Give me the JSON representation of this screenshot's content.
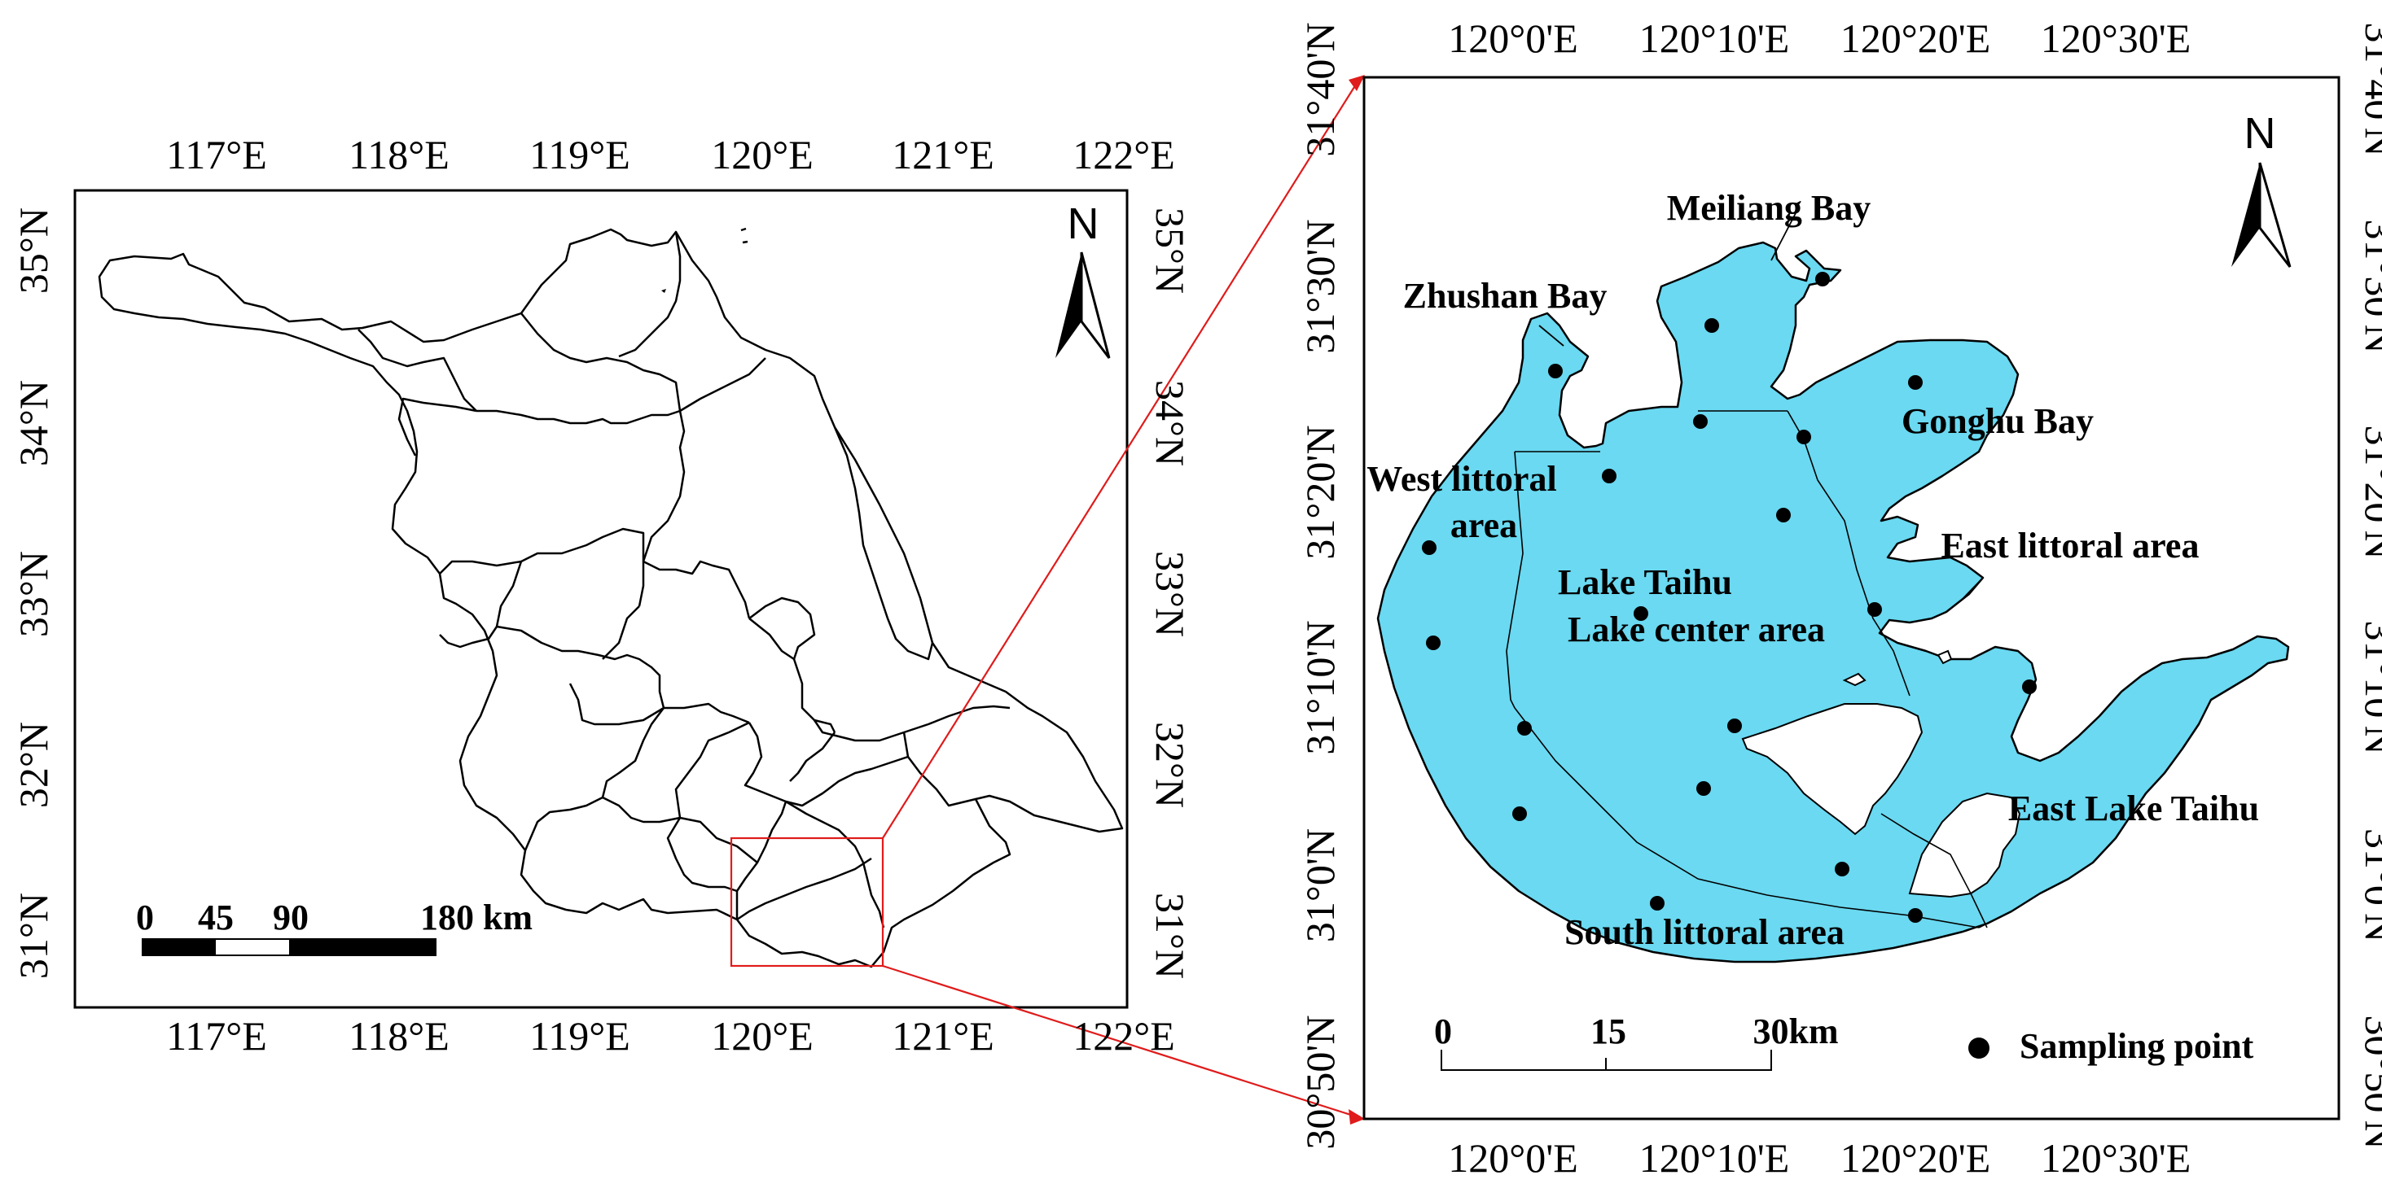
{
  "left_map": {
    "lon_labels": [
      "117°E",
      "118°E",
      "119°E",
      "120°E",
      "121°E",
      "122°E"
    ],
    "lat_labels": [
      "35°N",
      "34°N",
      "33°N",
      "32°N",
      "31°N"
    ],
    "north_label": "N",
    "scale_bar": {
      "labels": [
        "0",
        "45",
        "90",
        "180 km"
      ]
    }
  },
  "right_map": {
    "lon_labels": [
      "120°0'E",
      "120°10'E",
      "120°20'E",
      "120°30'E"
    ],
    "lat_labels": [
      "31°40'N",
      "31°30'N",
      "31°20'N",
      "31°10'N",
      "31°0'N",
      "30°50'N"
    ],
    "north_label": "N",
    "area_labels": {
      "meiliang": "Meiliang Bay",
      "zhushan": "Zhushan Bay",
      "gonghu": "Gonghu Bay",
      "west_1": "West littoral",
      "west_2": "area",
      "east_littoral": "East littoral area",
      "center_1": "Lake Taihu",
      "center_2": "Lake center area",
      "east_lake": "East Lake Taihu",
      "south": "South littoral area"
    },
    "scale_bar": {
      "labels": [
        "0",
        "15",
        "30km"
      ]
    },
    "legend": {
      "label": "Sampling point"
    }
  },
  "colors": {
    "lake": "#6ad9f1",
    "inset_box": "#e01b1b",
    "ink": "#000000"
  }
}
